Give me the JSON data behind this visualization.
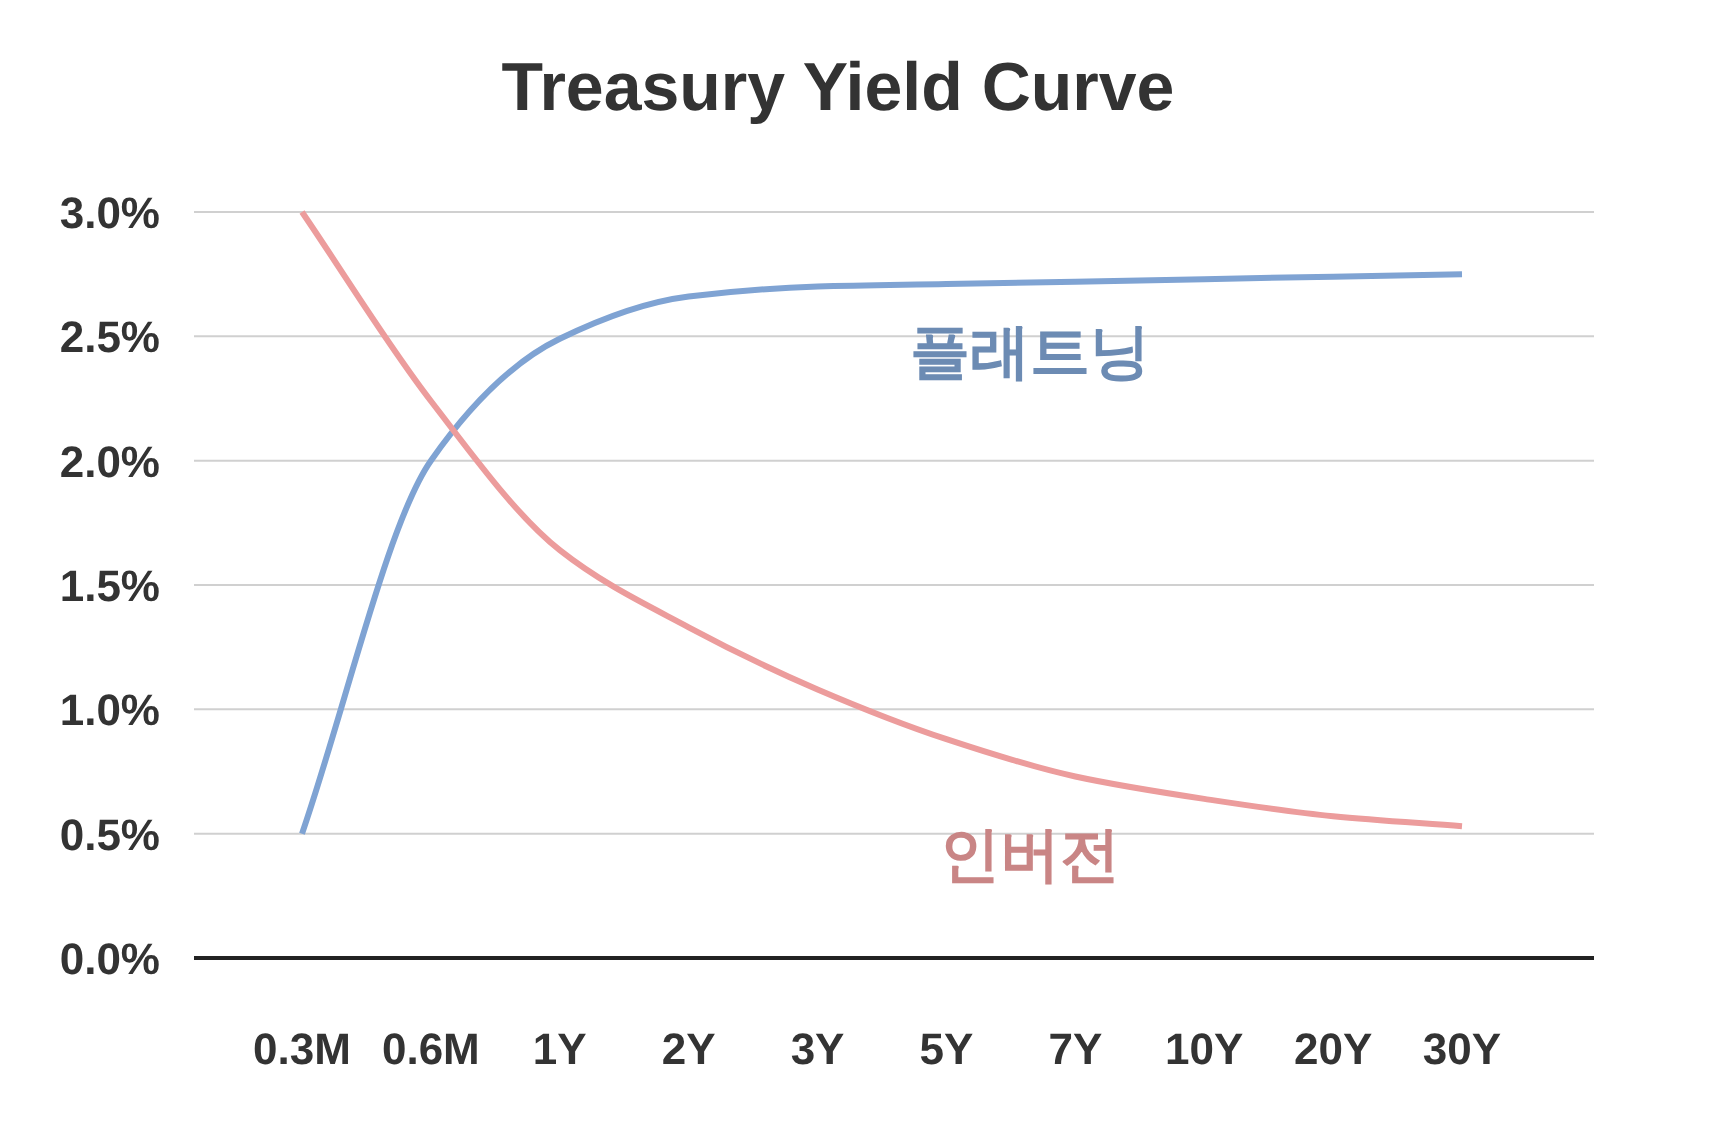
{
  "chart_data": {
    "type": "line",
    "title": "Treasury Yield Curve",
    "categories": [
      "0.3M",
      "0.6M",
      "1Y",
      "2Y",
      "3Y",
      "5Y",
      "7Y",
      "10Y",
      "20Y",
      "30Y"
    ],
    "series": [
      {
        "name": "플래트닝",
        "color": "#7fa3d3",
        "values": [
          0.5,
          2.0,
          2.49,
          2.66,
          2.7,
          2.71,
          2.72,
          2.73,
          2.74,
          2.75
        ]
      },
      {
        "name": "인버전",
        "color": "#ec9c9c",
        "values": [
          3.0,
          2.24,
          1.64,
          1.33,
          1.08,
          0.88,
          0.73,
          0.64,
          0.57,
          0.53
        ]
      }
    ],
    "ylim": [
      0,
      3
    ],
    "yticks": [
      {
        "value": 0,
        "label": "0.0%"
      },
      {
        "value": 0.5,
        "label": "0.5%"
      },
      {
        "value": 1,
        "label": "1.0%"
      },
      {
        "value": 1.5,
        "label": "1.5%"
      },
      {
        "value": 2,
        "label": "2.0%"
      },
      {
        "value": 2.5,
        "label": "2.5%"
      },
      {
        "value": 3,
        "label": "3.0%"
      }
    ],
    "grid": "y",
    "marker": "none",
    "line_style": "solid",
    "legend": false
  }
}
